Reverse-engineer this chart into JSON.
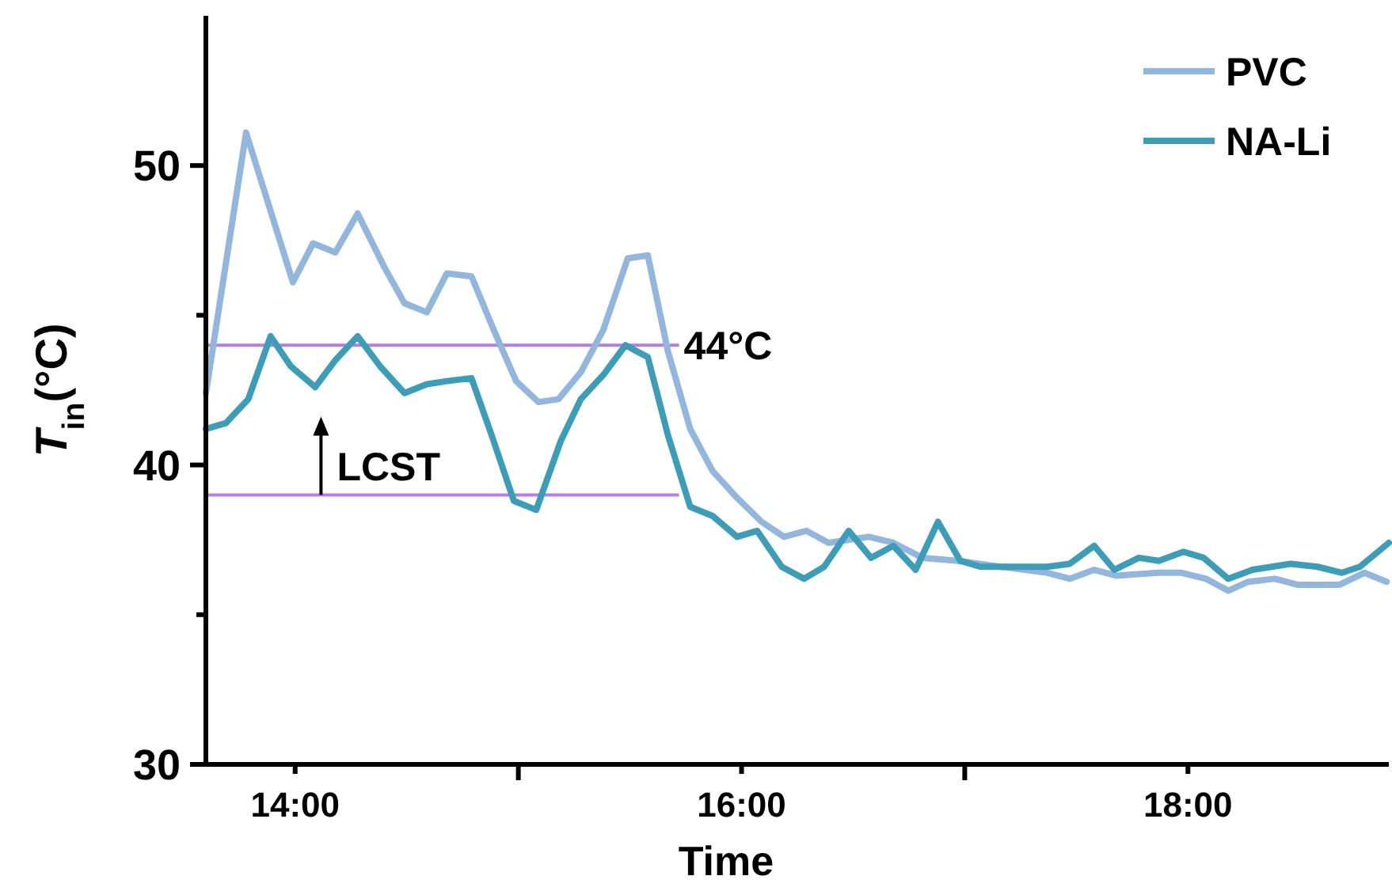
{
  "chart_data": {
    "type": "line",
    "xlabel": "Time",
    "ylabel": "T$_{in}$(°C)",
    "xlim": [
      13.6,
      18.9
    ],
    "xticks": [
      {
        "value": 14,
        "label": "14:00"
      },
      {
        "value": 15,
        "label": null
      },
      {
        "value": 16,
        "label": "16:00"
      },
      {
        "value": 17,
        "label": null
      },
      {
        "value": 18,
        "label": "18:00"
      }
    ],
    "ylim": [
      30,
      55
    ],
    "yticks": [
      30,
      {
        "value": 35,
        "label": null
      },
      40,
      {
        "value": 45,
        "label": null
      },
      50
    ],
    "grid": false,
    "legend": "top right",
    "marker": "none",
    "line_style": "solid",
    "ref_lines": [
      {
        "axis": "y",
        "value": 44,
        "label": "44°C",
        "color": "#b57ee0"
      },
      {
        "axis": "y",
        "value": 39,
        "label": null,
        "color": "#b57ee0"
      }
    ],
    "annotations": [
      "LCST"
    ],
    "series": [
      {
        "name": "PVC",
        "color": "#93b6dc",
        "x": [
          13.6,
          13.78,
          13.99,
          14.08,
          14.18,
          14.28,
          14.4,
          14.49,
          14.59,
          14.68,
          14.79,
          14.89,
          14.99,
          15.09,
          15.18,
          15.28,
          15.38,
          15.49,
          15.58,
          15.67,
          15.77,
          15.87,
          15.98,
          16.09,
          16.19,
          16.29,
          16.39,
          16.57,
          16.68,
          16.81,
          16.97,
          17.16,
          17.37,
          17.47,
          17.58,
          17.68,
          17.87,
          17.97,
          18.08,
          18.18,
          18.27,
          18.39,
          18.49,
          18.58,
          18.68,
          18.79,
          18.89
        ],
        "values": [
          42.4,
          51.1,
          46.1,
          47.4,
          47.1,
          48.4,
          46.6,
          45.4,
          45.1,
          46.4,
          46.3,
          44.5,
          42.8,
          42.1,
          42.2,
          43.1,
          44.5,
          46.9,
          47,
          43.8,
          41.2,
          39.8,
          38.9,
          38.1,
          37.6,
          37.8,
          37.4,
          37.6,
          37.4,
          36.9,
          36.8,
          36.6,
          36.4,
          36.2,
          36.5,
          36.3,
          36.4,
          36.4,
          36.2,
          35.8,
          36.1,
          36.2,
          36,
          36,
          36,
          36.4,
          36.1
        ]
      },
      {
        "name": "NA-Li",
        "color": "#3d9db6",
        "x": [
          13.6,
          13.69,
          13.79,
          13.89,
          13.98,
          14.09,
          14.18,
          14.28,
          14.38,
          14.49,
          14.59,
          14.68,
          14.79,
          14.88,
          14.98,
          15.08,
          15.19,
          15.28,
          15.38,
          15.48,
          15.58,
          15.67,
          15.77,
          15.87,
          15.98,
          16.07,
          16.18,
          16.28,
          16.37,
          16.48,
          16.58,
          16.68,
          16.78,
          16.88,
          16.98,
          17.07,
          17.26,
          17.37,
          17.47,
          17.58,
          17.67,
          17.78,
          17.87,
          17.98,
          18.07,
          18.18,
          18.29,
          18.46,
          18.58,
          18.69,
          18.77,
          18.9
        ],
        "values": [
          41.2,
          41.4,
          42.2,
          44.3,
          43.3,
          42.6,
          43.5,
          44.3,
          43.3,
          42.4,
          42.7,
          42.8,
          42.9,
          41,
          38.8,
          38.5,
          40.8,
          42.2,
          43,
          44,
          43.6,
          41,
          38.6,
          38.3,
          37.6,
          37.8,
          36.6,
          36.2,
          36.6,
          37.8,
          36.9,
          37.3,
          36.5,
          38.1,
          36.8,
          36.6,
          36.6,
          36.6,
          36.7,
          37.3,
          36.5,
          36.9,
          36.8,
          37.1,
          36.9,
          36.2,
          36.5,
          36.7,
          36.6,
          36.4,
          36.6,
          37.4
        ]
      }
    ]
  }
}
